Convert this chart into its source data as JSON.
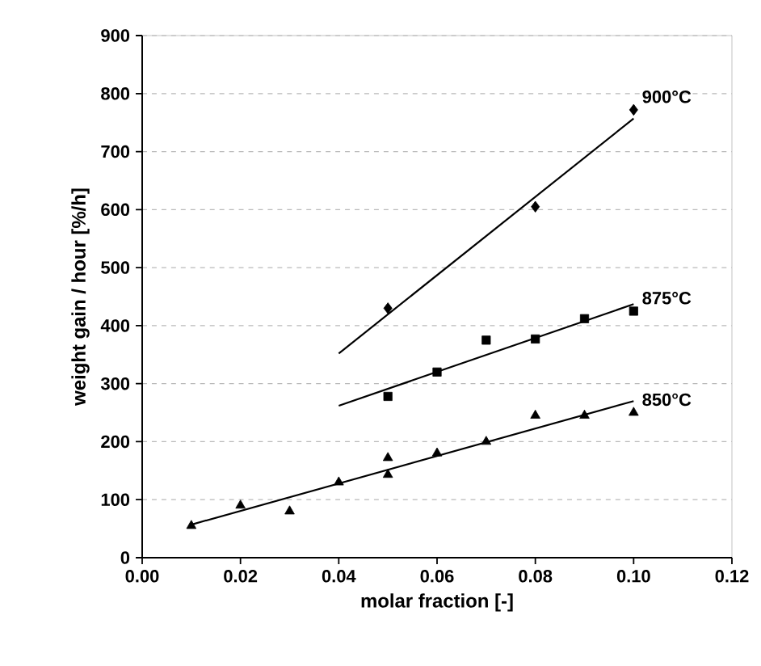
{
  "chart_data": {
    "type": "scatter",
    "xlabel": "molar fraction [-]",
    "ylabel": "weight gain / hour [%/h]",
    "xlim": [
      0,
      0.12
    ],
    "ylim": [
      0,
      900
    ],
    "xticks": [
      {
        "value": 0,
        "label": "0.00"
      },
      {
        "value": 0.02,
        "label": "0.02"
      },
      {
        "value": 0.04,
        "label": "0.04"
      },
      {
        "value": 0.06,
        "label": "0.06"
      },
      {
        "value": 0.08,
        "label": "0.08"
      },
      {
        "value": 0.1,
        "label": "0.10"
      },
      {
        "value": 0.12,
        "label": "0.12"
      }
    ],
    "yticks": [
      0,
      100,
      200,
      300,
      400,
      500,
      600,
      700,
      800,
      900
    ],
    "grid": "y",
    "series": [
      {
        "name": "900°C",
        "color": "#000000",
        "marker": "diamond",
        "x": [
          0.05,
          0.08,
          0.1
        ],
        "values": [
          430,
          605,
          772
        ]
      },
      {
        "name": "875°C",
        "color": "#000000",
        "marker": "square",
        "x": [
          0.05,
          0.06,
          0.07,
          0.08,
          0.09,
          0.1
        ],
        "values": [
          278,
          320,
          375,
          377,
          412,
          425
        ]
      },
      {
        "name": "850°C",
        "color": "#000000",
        "marker": "triangle",
        "x": [
          0.01,
          0.02,
          0.03,
          0.04,
          0.05,
          0.05,
          0.06,
          0.07,
          0.08,
          0.09,
          0.1
        ],
        "values": [
          55,
          90,
          80,
          130,
          172,
          143,
          180,
          200,
          245,
          245,
          250
        ]
      },
      {
        "type": "line",
        "color": "#000000",
        "marker": "none",
        "line_style": "solid",
        "x": [
          0.04,
          0.1
        ],
        "values": [
          352,
          757
        ]
      },
      {
        "type": "line",
        "color": "#000000",
        "marker": "none",
        "line_style": "solid",
        "x": [
          0.04,
          0.1
        ],
        "values": [
          262,
          437
        ]
      },
      {
        "type": "line",
        "color": "#000000",
        "marker": "none",
        "line_style": "solid",
        "x": [
          0.01,
          0.1
        ],
        "values": [
          57,
          270
        ]
      }
    ]
  }
}
